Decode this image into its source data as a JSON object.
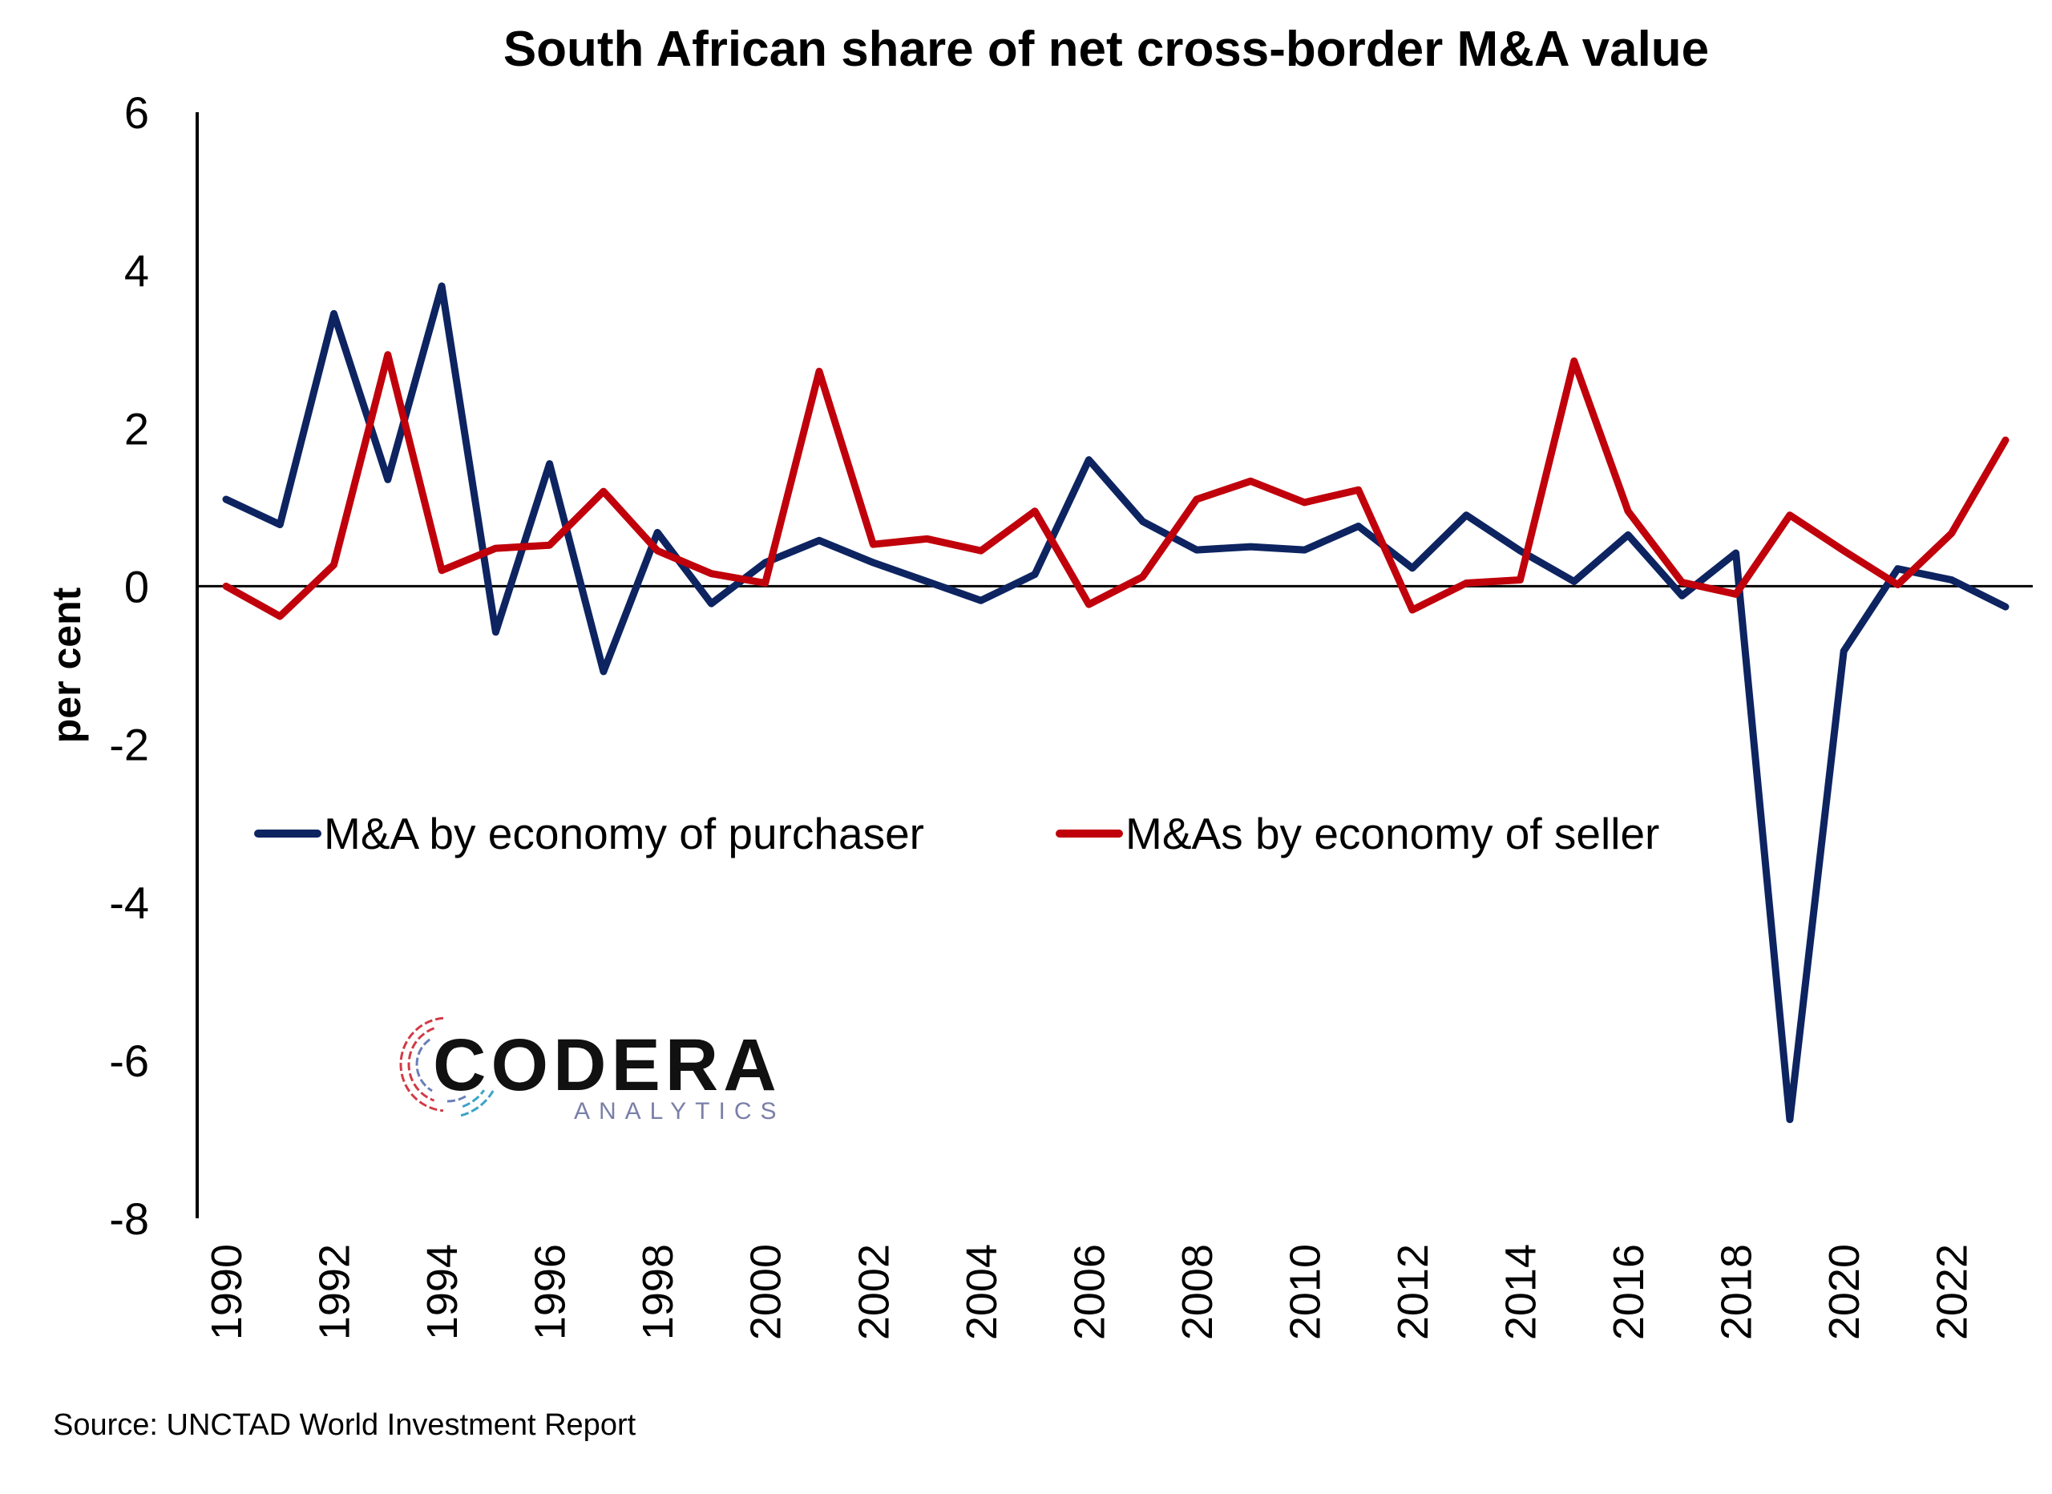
{
  "chart_data": {
    "type": "line",
    "title": "South African share of net cross-border M&A value",
    "ylabel": "per cent",
    "xlabel": "",
    "ylim": [
      -8,
      6
    ],
    "yticks": [
      6,
      4,
      2,
      0,
      -2,
      -4,
      -6,
      -8
    ],
    "x": [
      1990,
      1991,
      1992,
      1993,
      1994,
      1995,
      1996,
      1997,
      1998,
      1999,
      2000,
      2001,
      2002,
      2003,
      2004,
      2005,
      2006,
      2007,
      2008,
      2009,
      2010,
      2011,
      2012,
      2013,
      2014,
      2015,
      2016,
      2017,
      2018,
      2019,
      2020,
      2021,
      2022,
      2023
    ],
    "xticks": [
      "1990",
      "1992",
      "1994",
      "1996",
      "1998",
      "2000",
      "2002",
      "2004",
      "2006",
      "2008",
      "2010",
      "2012",
      "2014",
      "2016",
      "2018",
      "2020",
      "2022"
    ],
    "legend_position": "middle",
    "grid": false,
    "series": [
      {
        "name": "M&A by economy of purchaser",
        "color": "#0d2461",
        "values": [
          1.1,
          0.78,
          3.45,
          1.35,
          3.8,
          -0.58,
          1.55,
          -1.08,
          0.68,
          -0.22,
          0.3,
          0.58,
          0.3,
          0.06,
          -0.18,
          0.15,
          1.6,
          0.82,
          0.46,
          0.5,
          0.46,
          0.76,
          0.23,
          0.9,
          0.45,
          0.06,
          0.65,
          -0.12,
          0.42,
          -6.75,
          -0.82,
          0.22,
          0.08,
          -0.26
        ]
      },
      {
        "name": "M&As by economy of seller",
        "color": "#c0000b",
        "values": [
          0.0,
          -0.38,
          0.27,
          2.93,
          0.2,
          0.48,
          0.52,
          1.2,
          0.45,
          0.16,
          0.04,
          2.72,
          0.53,
          0.6,
          0.45,
          0.95,
          -0.23,
          0.12,
          1.1,
          1.33,
          1.06,
          1.22,
          -0.3,
          0.04,
          0.08,
          2.85,
          0.95,
          0.05,
          -0.1,
          0.9,
          0.45,
          0.02,
          0.67,
          1.85
        ]
      }
    ],
    "source": "Source: UNCTAD World Investment Report"
  },
  "logo": {
    "name": "CODERA",
    "tagline": "ANALYTICS",
    "colors": [
      "#d23a46",
      "#6a7fb8",
      "#3aa3c9"
    ]
  }
}
